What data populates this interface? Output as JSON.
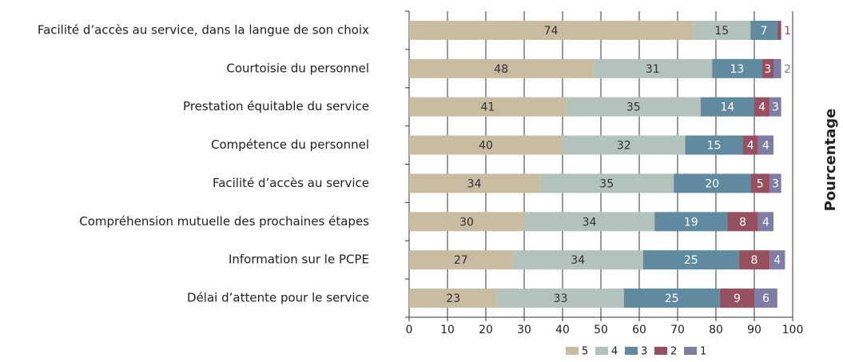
{
  "chart_data": {
    "type": "stacked_barh",
    "axis_label": "Pourcentage",
    "categories": [
      "Facilité d’accès au service, dans la langue de son choix",
      "Courtoisie du personnel",
      "Prestation équitable du service",
      "Compétence du personnel",
      "Facilité d’accès au service",
      "Compréhension mutuelle des prochaines étapes",
      "Information sur le PCPE",
      "Délai d’attente pour le service"
    ],
    "series": [
      {
        "name": "5",
        "color": "#c9bca3",
        "label_color": "#333333",
        "values": [
          74,
          48,
          41,
          40,
          34,
          30,
          27,
          23
        ]
      },
      {
        "name": "4",
        "color": "#b3c3bc",
        "label_color": "#333333",
        "values": [
          15,
          31,
          35,
          32,
          35,
          34,
          34,
          33
        ]
      },
      {
        "name": "3",
        "color": "#5f8a9f",
        "label_color": "#ffffff",
        "values": [
          7,
          13,
          14,
          15,
          20,
          19,
          25,
          25
        ]
      },
      {
        "name": "2",
        "color": "#97505f",
        "label_color": "#ffffff",
        "values": [
          1,
          3,
          4,
          4,
          5,
          8,
          8,
          9
        ]
      },
      {
        "name": "1",
        "color": "#7d7da6",
        "label_color": "#ffffff",
        "values": [
          null,
          2,
          3,
          4,
          3,
          4,
          4,
          6
        ]
      }
    ],
    "xlim": [
      0,
      100
    ],
    "xticks": [
      0,
      10,
      20,
      30,
      40,
      50,
      60,
      70,
      80,
      90,
      100
    ],
    "grid": true
  }
}
